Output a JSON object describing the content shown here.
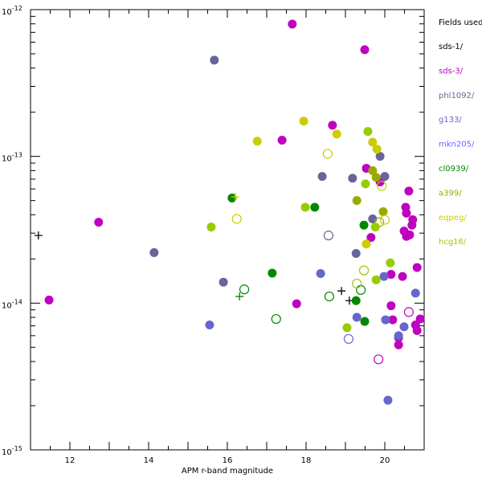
{
  "chart_data": {
    "type": "scatter",
    "title": "",
    "xlabel": "APM r-band magnitude",
    "ylabel": "",
    "xlim": [
      11,
      21
    ],
    "ylim": [
      1e-15,
      1e-12
    ],
    "yscale": "log",
    "grid": false,
    "x_ticks": [
      "12",
      "14",
      "16",
      "18",
      "20"
    ],
    "y_ticks": [
      {
        "base": "10",
        "exp": "-12"
      },
      {
        "base": "10",
        "exp": "-13"
      },
      {
        "base": "10",
        "exp": "-14"
      },
      {
        "base": "10",
        "exp": "-15"
      }
    ],
    "legend": {
      "title": "Fields used",
      "placement": "right-outside"
    },
    "series": [
      {
        "name": "sds-1/",
        "color": "#000000",
        "filled": [],
        "open": [],
        "cross": [
          [
            11.2,
            2.89e-14
          ],
          [
            18.9,
            1.21e-14
          ],
          [
            19.1,
            1.04e-14
          ]
        ]
      },
      {
        "name": "sds-3/",
        "color": "#c000c0",
        "filled": [
          [
            11.47,
            1.05e-14
          ],
          [
            12.73,
            3.56e-14
          ],
          [
            17.65,
            7.97e-13
          ],
          [
            19.49,
            5.33e-13
          ],
          [
            17.39,
            1.29e-13
          ],
          [
            18.67,
            1.63e-13
          ],
          [
            17.76,
            9.9e-15
          ],
          [
            19.53,
            8.3e-14
          ],
          [
            19.88,
            6.7e-14
          ],
          [
            20.61,
            5.8e-14
          ],
          [
            20.53,
            4.5e-14
          ],
          [
            20.55,
            4.1e-14
          ],
          [
            20.71,
            3.7e-14
          ],
          [
            20.69,
            3.4e-14
          ],
          [
            20.49,
            3.1e-14
          ],
          [
            20.55,
            2.85e-14
          ],
          [
            20.63,
            2.92e-14
          ],
          [
            19.65,
            2.8e-14
          ],
          [
            20.82,
            1.75e-14
          ],
          [
            20.16,
            1.57e-14
          ],
          [
            20.45,
            1.52e-14
          ],
          [
            20.16,
            9.6e-15
          ],
          [
            20.2,
            7.7e-15
          ],
          [
            20.9,
            7.8e-15
          ],
          [
            20.78,
            7.1e-15
          ],
          [
            20.82,
            6.5e-15
          ],
          [
            20.35,
            5.8e-15
          ],
          [
            20.35,
            5.2e-15
          ]
        ],
        "open": [
          [
            20.61,
            8.7e-15
          ],
          [
            19.84,
            4.14e-15
          ]
        ],
        "cross": []
      },
      {
        "name": "phl1092/",
        "color": "#666699",
        "filled": [
          [
            15.67,
            4.53e-13
          ],
          [
            14.14,
            2.21e-14
          ],
          [
            15.9,
            1.39e-14
          ],
          [
            18.41,
            7.3e-14
          ],
          [
            19.18,
            7.1e-14
          ],
          [
            19.88,
            1e-13
          ],
          [
            20.0,
            7.3e-14
          ],
          [
            19.69,
            3.75e-14
          ],
          [
            19.27,
            2.18e-14
          ]
        ],
        "open": [
          [
            18.57,
            2.89e-14
          ]
        ],
        "cross": []
      },
      {
        "name": "g133/",
        "color": "#6666cc",
        "filled": [
          [
            15.55,
            7.1e-15
          ],
          [
            18.37,
            1.59e-14
          ],
          [
            19.98,
            1.52e-14
          ],
          [
            20.78,
            1.17e-14
          ],
          [
            19.29,
            8e-15
          ],
          [
            20.02,
            7.7e-15
          ],
          [
            20.49,
            6.9e-15
          ],
          [
            20.35,
            6e-15
          ],
          [
            20.08,
            2.18e-15
          ]
        ],
        "open": [
          [
            19.08,
            5.7e-15
          ]
        ],
        "cross": []
      },
      {
        "name": "mkn205/",
        "color": "#6666ff",
        "filled": [],
        "open": [],
        "cross": []
      },
      {
        "name": "cl0939/",
        "color": "#008800",
        "filled": [
          [
            16.12,
            5.2e-14
          ],
          [
            18.22,
            4.5e-14
          ],
          [
            17.14,
            1.6e-14
          ],
          [
            19.47,
            3.4e-14
          ],
          [
            19.27,
            1.04e-14
          ],
          [
            19.49,
            7.5e-15
          ]
        ],
        "open": [
          [
            16.43,
            1.24e-14
          ],
          [
            18.59,
            1.11e-14
          ],
          [
            17.24,
            7.8e-15
          ],
          [
            19.39,
            1.23e-14
          ]
        ],
        "cross": [
          [
            16.31,
            1.11e-14
          ]
        ]
      },
      {
        "name": "a399/",
        "color": "#99aa00",
        "filled": [
          [
            19.69,
            8e-14
          ],
          [
            19.78,
            7.2e-14
          ],
          [
            19.29,
            5e-14
          ],
          [
            19.96,
            4.2e-14
          ]
        ],
        "open": [
          [
            19.86,
            3.56e-14
          ]
        ],
        "cross": []
      },
      {
        "name": "eqpeg/",
        "color": "#cccc00",
        "filled": [
          [
            17.94,
            1.74e-13
          ],
          [
            16.76,
            1.27e-13
          ],
          [
            18.78,
            1.42e-13
          ],
          [
            19.69,
            1.25e-13
          ],
          [
            19.8,
            1.12e-13
          ],
          [
            19.53,
            2.53e-14
          ]
        ],
        "open": [
          [
            18.55,
            1.04e-13
          ],
          [
            16.24,
            3.75e-14
          ],
          [
            19.92,
            6.3e-14
          ],
          [
            20.0,
            3.7e-14
          ]
        ],
        "cross": [
          [
            16.2,
            5.3e-14
          ]
        ]
      },
      {
        "name": "hcg16/",
        "color": "#99cc00",
        "filled": [
          [
            17.98,
            4.5e-14
          ],
          [
            15.59,
            3.3e-14
          ],
          [
            19.57,
            1.48e-13
          ],
          [
            19.51,
            6.5e-14
          ],
          [
            19.76,
            3.3e-14
          ],
          [
            20.14,
            1.88e-14
          ],
          [
            19.78,
            1.44e-14
          ],
          [
            19.04,
            6.8e-15
          ]
        ],
        "open": [
          [
            19.47,
            1.67e-14
          ],
          [
            19.29,
            1.36e-14
          ]
        ],
        "cross": []
      }
    ]
  }
}
